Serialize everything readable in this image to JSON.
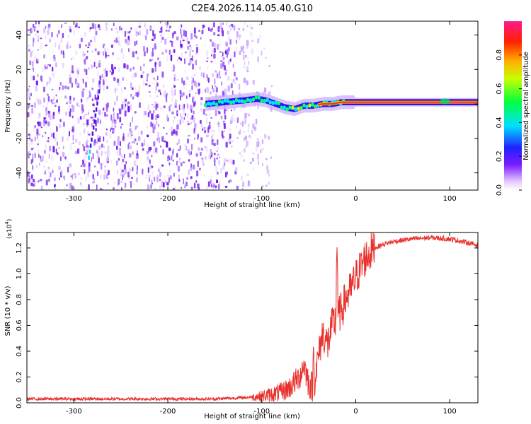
{
  "title": "C2E4.2026.114.05.40.G10",
  "colors": {
    "snr_line": "#e8302c",
    "ridge": "#ff2a1a",
    "noise": "#6a1ee0",
    "axis": "#000000"
  },
  "chart_data": [
    {
      "type": "heatmap",
      "xlabel": "Height of straight line (km)",
      "ylabel": "Frequency (Hz)",
      "xlim": [
        -350,
        130
      ],
      "ylim": [
        -50,
        48
      ],
      "xticks": [
        -300,
        -200,
        -100,
        0,
        100
      ],
      "yticks": [
        -40,
        -20,
        0,
        20,
        40
      ],
      "x_tick_labels": [
        "-300",
        "-200",
        "-100",
        "0",
        "100"
      ],
      "y_tick_labels": [
        "-40",
        "-20",
        "0",
        "20",
        "40"
      ],
      "colorbar": {
        "label": "Normalized spectral amplitude",
        "range": [
          0,
          1
        ],
        "ticks": [
          0.0,
          0.2,
          0.4,
          0.6,
          0.8
        ],
        "tick_labels": [
          "0.0",
          "0.2",
          "0.4",
          "0.6",
          "0.8"
        ]
      },
      "noise_region_km": [
        -350,
        -110
      ],
      "ridge": {
        "x": [
          -160,
          -140,
          -120,
          -105,
          -95,
          -85,
          -75,
          -65,
          -55,
          -45,
          -35,
          -25,
          -15,
          0,
          50,
          100,
          130
        ],
        "freq": [
          0,
          1,
          2,
          3,
          2,
          0,
          -2,
          -3,
          -1,
          -1,
          0,
          0,
          1,
          1,
          1,
          1,
          1
        ],
        "amplitude": [
          0.35,
          0.4,
          0.4,
          0.45,
          0.45,
          0.45,
          0.5,
          0.55,
          0.6,
          0.65,
          0.7,
          0.75,
          0.8,
          0.9,
          0.95,
          0.95,
          0.95
        ]
      }
    },
    {
      "type": "line",
      "xlabel": "Height of straight line (km)",
      "ylabel": "SNR (10 * v/v)",
      "y_multiplier": "(x10",
      "y_multiplier_exp": "4",
      "y_multiplier_close": ")",
      "xlim": [
        -350,
        130
      ],
      "ylim": [
        0,
        1.32
      ],
      "xticks": [
        -300,
        -200,
        -100,
        0,
        100
      ],
      "yticks": [
        0.0,
        0.2,
        0.4,
        0.6,
        0.8,
        1.0,
        1.2
      ],
      "x_tick_labels": [
        "-300",
        "-200",
        "-100",
        "0",
        "100"
      ],
      "y_tick_labels": [
        "0.0",
        "0.2",
        "0.4",
        "0.6",
        "0.8",
        "1.0",
        "1.2"
      ],
      "series": [
        {
          "name": "SNR",
          "x": [
            -350,
            -300,
            -250,
            -200,
            -150,
            -120,
            -100,
            -80,
            -70,
            -60,
            -55,
            -50,
            -45,
            -40,
            -35,
            -30,
            -25,
            -20,
            -15,
            -10,
            -5,
            0,
            10,
            20,
            30,
            40,
            60,
            80,
            100,
            120,
            130
          ],
          "y": [
            0.03,
            0.03,
            0.03,
            0.03,
            0.03,
            0.04,
            0.05,
            0.08,
            0.12,
            0.2,
            0.3,
            0.15,
            0.12,
            0.35,
            0.55,
            0.45,
            0.6,
            0.65,
            0.72,
            0.82,
            0.88,
            0.97,
            1.12,
            1.2,
            1.23,
            1.25,
            1.27,
            1.28,
            1.27,
            1.24,
            1.22
          ]
        }
      ],
      "spikes": [
        {
          "x": -20,
          "y": 1.22
        },
        {
          "x": -45,
          "y": 0.48
        }
      ]
    }
  ]
}
